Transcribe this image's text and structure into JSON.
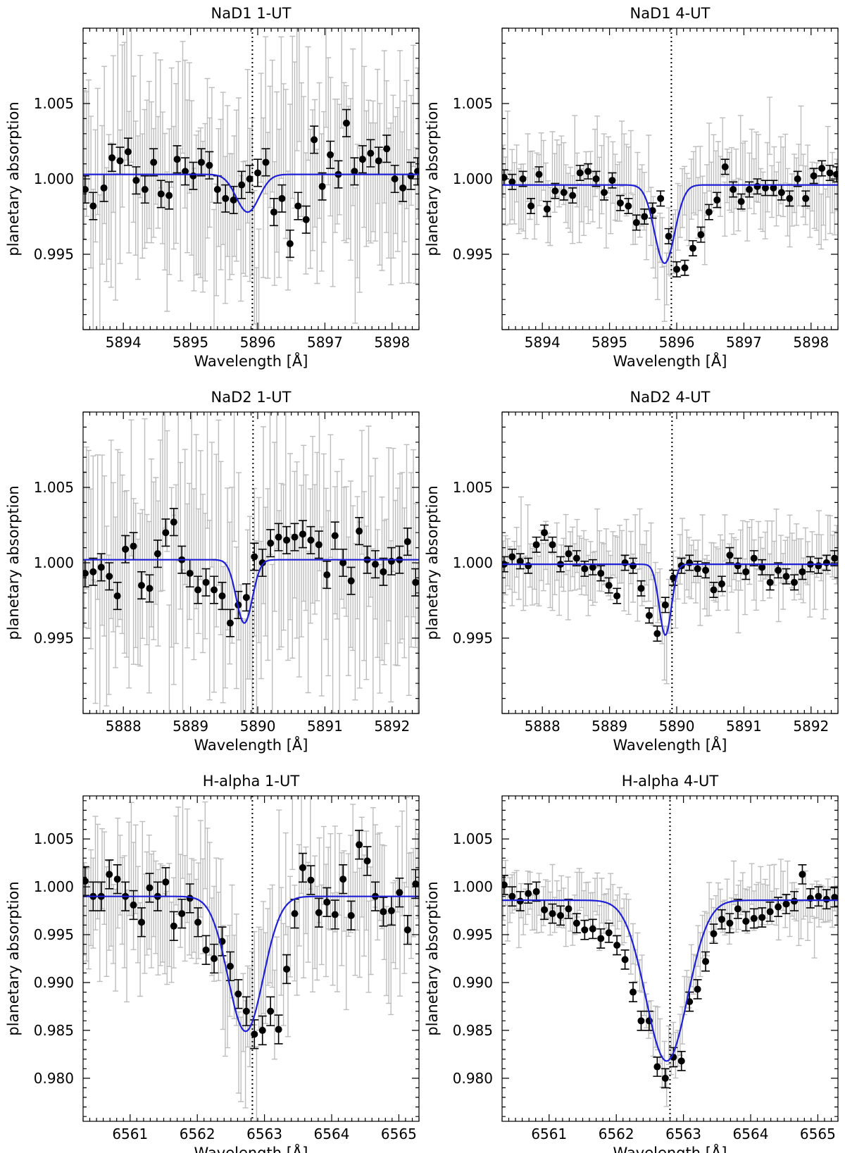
{
  "figure": {
    "panels": [
      {
        "title": "NaD1 1-UT",
        "xlabel": "Wavelength [Å]",
        "ylabel": "planetary absorption"
      },
      {
        "title": "NaD1 4-UT",
        "xlabel": "Wavelength [Å]",
        "ylabel": "planetary absorption"
      },
      {
        "title": "NaD2 1-UT",
        "xlabel": "Wavelength [Å]",
        "ylabel": "planetary absorption"
      },
      {
        "title": "NaD2 4-UT",
        "xlabel": "Wavelength [Å]",
        "ylabel": "planetary absorption"
      },
      {
        "title": "H-alpha 1-UT",
        "xlabel": "Wavelength [Å]",
        "ylabel": "planetary absorption"
      },
      {
        "title": "H-alpha 4-UT",
        "xlabel": "Wavelength [Å]",
        "ylabel": "planetary absorption"
      }
    ]
  },
  "colors": {
    "fit_line": "#1f1fd6",
    "binned_points": "#000000",
    "raw_errorbars": "#bdbdbd",
    "axes": "#000000"
  },
  "chart_data": [
    {
      "type": "scatter",
      "title": "NaD1 1-UT",
      "xlabel": "Wavelength [Å]",
      "ylabel": "planetary absorption",
      "xlim": [
        5893.4,
        5898.4
      ],
      "ylim": [
        0.99,
        1.01
      ],
      "xticks": [
        5894,
        5895,
        5896,
        5897,
        5898
      ],
      "yticks": [
        0.995,
        1.0,
        1.005
      ],
      "ytick_labels": [
        "0.995",
        "1.000",
        "1.005"
      ],
      "reference_line_x": 5895.92,
      "fit": {
        "baseline": 1.0003,
        "depth": 0.0025,
        "center": 5895.85,
        "sigma": 0.17
      },
      "raw_noise": {
        "scatter": 0.0028,
        "errorbar": 0.0045
      },
      "binned": {
        "x": [
          5893.43,
          5893.55,
          5893.71,
          5893.83,
          5893.95,
          5894.07,
          5894.19,
          5894.32,
          5894.45,
          5894.56,
          5894.68,
          5894.8,
          5894.92,
          5895.04,
          5895.16,
          5895.28,
          5895.4,
          5895.52,
          5895.64,
          5895.76,
          5895.88,
          5896.0,
          5896.12,
          5896.24,
          5896.36,
          5896.48,
          5896.6,
          5896.72,
          5896.84,
          5896.96,
          5897.08,
          5897.2,
          5897.32,
          5897.44,
          5897.56,
          5897.68,
          5897.8,
          5897.92,
          5898.04,
          5898.16,
          5898.28,
          5898.38
        ],
        "y": [
          0.9993,
          0.9982,
          0.9994,
          1.0014,
          1.0012,
          1.0018,
          0.9999,
          0.9993,
          1.0011,
          0.999,
          0.9989,
          1.0013,
          1.0005,
          1.0002,
          1.0011,
          1.0009,
          0.9993,
          0.9987,
          0.9986,
          0.9996,
          1.0,
          1.0004,
          1.0011,
          0.9978,
          0.9987,
          0.9957,
          0.9982,
          0.9973,
          1.0026,
          0.9995,
          1.0016,
          1.0003,
          1.0037,
          1.0005,
          1.0013,
          1.0017,
          1.0012,
          1.002,
          1.0,
          0.9994,
          1.0002,
          1.0005
        ],
        "err": 0.0009
      }
    },
    {
      "type": "scatter",
      "title": "NaD1 4-UT",
      "xlabel": "Wavelength [Å]",
      "ylabel": "planetary absorption",
      "xlim": [
        5893.4,
        5898.4
      ],
      "ylim": [
        0.99,
        1.01
      ],
      "xticks": [
        5894,
        5895,
        5896,
        5897,
        5898
      ],
      "yticks": [
        0.995,
        1.0,
        1.005
      ],
      "ytick_labels": [
        "0.995",
        "1.000",
        "1.005"
      ],
      "reference_line_x": 5895.92,
      "fit": {
        "baseline": 0.9996,
        "depth": 0.0052,
        "center": 5895.82,
        "sigma": 0.15
      },
      "raw_noise": {
        "scatter": 0.0012,
        "errorbar": 0.002
      },
      "binned": {
        "x": [
          5893.43,
          5893.55,
          5893.71,
          5893.83,
          5893.95,
          5894.07,
          5894.19,
          5894.32,
          5894.45,
          5894.56,
          5894.68,
          5894.8,
          5894.92,
          5895.04,
          5895.16,
          5895.28,
          5895.4,
          5895.52,
          5895.64,
          5895.76,
          5895.88,
          5896.0,
          5896.12,
          5896.24,
          5896.36,
          5896.48,
          5896.6,
          5896.72,
          5896.84,
          5896.96,
          5897.08,
          5897.2,
          5897.32,
          5897.44,
          5897.56,
          5897.68,
          5897.8,
          5897.92,
          5898.04,
          5898.16,
          5898.28,
          5898.38
        ],
        "y": [
          1.0001,
          0.9998,
          1.0,
          0.9982,
          1.0003,
          0.998,
          0.9992,
          0.9991,
          0.9989,
          1.0004,
          1.0005,
          1.0,
          0.9991,
          0.9999,
          0.9984,
          0.9982,
          0.9971,
          0.9975,
          0.9979,
          0.9987,
          0.9962,
          0.994,
          0.9941,
          0.9954,
          0.9963,
          0.9978,
          0.9986,
          1.0008,
          0.9993,
          0.9985,
          0.9993,
          0.9995,
          0.9994,
          0.9994,
          0.9991,
          0.9987,
          1.0,
          0.9987,
          1.0002,
          1.0007,
          1.0004,
          1.0003
        ],
        "err": 0.0005
      }
    },
    {
      "type": "scatter",
      "title": "NaD2 1-UT",
      "xlabel": "Wavelength [Å]",
      "ylabel": "planetary absorption",
      "xlim": [
        5887.4,
        5892.4
      ],
      "ylim": [
        0.99,
        1.01
      ],
      "xticks": [
        5888,
        5889,
        5890,
        5891,
        5892
      ],
      "yticks": [
        0.995,
        1.0,
        1.005
      ],
      "ytick_labels": [
        "0.995",
        "1.000",
        "1.005"
      ],
      "reference_line_x": 5889.93,
      "fit": {
        "baseline": 1.0002,
        "depth": 0.0042,
        "center": 5889.8,
        "sigma": 0.12
      },
      "raw_noise": {
        "scatter": 0.003,
        "errorbar": 0.005
      },
      "binned": {
        "x": [
          5887.43,
          5887.55,
          5887.67,
          5887.79,
          5887.91,
          5888.03,
          5888.15,
          5888.27,
          5888.39,
          5888.51,
          5888.63,
          5888.75,
          5888.87,
          5888.99,
          5889.11,
          5889.23,
          5889.35,
          5889.47,
          5889.59,
          5889.71,
          5889.83,
          5889.95,
          5890.07,
          5890.19,
          5890.31,
          5890.43,
          5890.55,
          5890.67,
          5890.79,
          5890.91,
          5891.03,
          5891.15,
          5891.27,
          5891.39,
          5891.51,
          5891.63,
          5891.75,
          5891.87,
          5891.99,
          5892.11,
          5892.23,
          5892.35
        ],
        "y": [
          0.9993,
          0.9994,
          0.9997,
          0.9991,
          0.9978,
          1.0009,
          1.0011,
          0.9985,
          0.9983,
          1.0006,
          1.002,
          1.0027,
          1.0002,
          0.9993,
          0.9982,
          0.9987,
          0.9982,
          0.9978,
          0.996,
          0.9972,
          0.9977,
          1.0004,
          1.0,
          1.0013,
          1.0017,
          1.0015,
          1.0017,
          1.0019,
          1.0015,
          1.0012,
          0.9992,
          1.0018,
          1.0,
          0.9988,
          1.0021,
          1.0002,
          0.9999,
          0.9994,
          1.0001,
          1.0002,
          1.0014,
          0.9987
        ],
        "err": 0.0009
      }
    },
    {
      "type": "scatter",
      "title": "NaD2 4-UT",
      "xlabel": "Wavelength [Å]",
      "ylabel": "planetary absorption",
      "xlim": [
        5887.4,
        5892.4
      ],
      "ylim": [
        0.99,
        1.01
      ],
      "xticks": [
        5888,
        5889,
        5890,
        5891,
        5892
      ],
      "yticks": [
        0.995,
        1.0,
        1.005
      ],
      "ytick_labels": [
        "0.995",
        "1.000",
        "1.005"
      ],
      "reference_line_x": 5889.93,
      "fit": {
        "baseline": 0.9999,
        "depth": 0.0047,
        "center": 5889.83,
        "sigma": 0.09
      },
      "raw_noise": {
        "scatter": 0.001,
        "errorbar": 0.0017
      },
      "binned": {
        "x": [
          5887.43,
          5887.55,
          5887.67,
          5887.79,
          5887.91,
          5888.03,
          5888.15,
          5888.27,
          5888.39,
          5888.51,
          5888.63,
          5888.75,
          5888.87,
          5888.99,
          5889.11,
          5889.23,
          5889.35,
          5889.47,
          5889.59,
          5889.71,
          5889.83,
          5889.95,
          5890.07,
          5890.19,
          5890.31,
          5890.43,
          5890.55,
          5890.67,
          5890.79,
          5890.91,
          5891.03,
          5891.15,
          5891.27,
          5891.39,
          5891.51,
          5891.63,
          5891.75,
          5891.87,
          5891.99,
          5892.11,
          5892.23,
          5892.35
        ],
        "y": [
          0.9999,
          1.0004,
          1.0001,
          0.9998,
          1.0012,
          1.002,
          1.0012,
          0.9999,
          1.0006,
          1.0003,
          0.9996,
          0.9997,
          0.9993,
          0.9985,
          0.9978,
          1.0,
          0.9998,
          0.9983,
          0.9965,
          0.9953,
          0.9972,
          0.999,
          0.9998,
          1.0,
          0.9996,
          0.9995,
          0.9982,
          0.9986,
          1.0005,
          0.9998,
          0.9994,
          1.0003,
          0.9997,
          0.9987,
          0.9995,
          0.9991,
          0.9987,
          0.9994,
          0.9999,
          0.9998,
          1.0,
          1.0003
        ],
        "err": 0.0005
      }
    },
    {
      "type": "scatter",
      "title": "H-alpha 1-UT",
      "xlabel": "Wavelength [Å]",
      "ylabel": "planetary absorption",
      "xlim": [
        6560.3,
        6565.3
      ],
      "ylim": [
        0.9755,
        1.0095
      ],
      "xticks": [
        6561,
        6562,
        6563,
        6564,
        6565
      ],
      "yticks": [
        0.98,
        0.985,
        0.99,
        0.995,
        1.0,
        1.005
      ],
      "ytick_labels": [
        "0.980",
        "0.985",
        "0.990",
        "0.995",
        "1.000",
        "1.005"
      ],
      "reference_line_x": 6562.82,
      "fit": {
        "baseline": 0.999,
        "depth": 0.0141,
        "center": 6562.72,
        "sigma": 0.26
      },
      "raw_noise": {
        "scatter": 0.003,
        "errorbar": 0.005
      },
      "binned": {
        "x": [
          6560.33,
          6560.45,
          6560.57,
          6560.69,
          6560.81,
          6560.93,
          6561.05,
          6561.17,
          6561.29,
          6561.41,
          6561.53,
          6561.65,
          6561.77,
          6561.89,
          6562.01,
          6562.13,
          6562.25,
          6562.37,
          6562.49,
          6562.61,
          6562.73,
          6562.85,
          6562.97,
          6563.09,
          6563.21,
          6563.33,
          6563.45,
          6563.57,
          6563.69,
          6563.81,
          6563.93,
          6564.05,
          6564.17,
          6564.29,
          6564.41,
          6564.53,
          6564.65,
          6564.77,
          6564.89,
          6565.01,
          6565.13,
          6565.25
        ],
        "y": [
          1.0006,
          0.999,
          0.999,
          1.0013,
          1.0008,
          0.999,
          0.9981,
          0.9963,
          0.9999,
          0.999,
          1.0005,
          0.9959,
          0.9972,
          0.9988,
          0.9963,
          0.9934,
          0.9925,
          0.9943,
          0.9917,
          0.9888,
          0.987,
          0.9846,
          0.985,
          0.987,
          0.9851,
          0.9914,
          0.9972,
          1.002,
          1.0007,
          0.9973,
          0.9984,
          0.9971,
          1.0008,
          0.997,
          1.0044,
          1.0027,
          0.999,
          0.9974,
          0.9975,
          0.9994,
          0.9955,
          1.0003
        ],
        "err": 0.0015
      }
    },
    {
      "type": "scatter",
      "title": "H-alpha 4-UT",
      "xlabel": "Wavelength [Å]",
      "ylabel": "planetary absorption",
      "xlim": [
        6560.3,
        6565.3
      ],
      "ylim": [
        0.9755,
        1.0095
      ],
      "xticks": [
        6561,
        6562,
        6563,
        6564,
        6565
      ],
      "yticks": [
        0.98,
        0.985,
        0.99,
        0.995,
        1.0,
        1.005
      ],
      "ytick_labels": [
        "0.980",
        "0.985",
        "0.990",
        "0.995",
        "1.000",
        "1.005"
      ],
      "reference_line_x": 6562.8,
      "fit": {
        "baseline": 0.9986,
        "depth": 0.0168,
        "center": 6562.75,
        "sigma": 0.31
      },
      "raw_noise": {
        "scatter": 0.0012,
        "errorbar": 0.002
      },
      "binned": {
        "x": [
          6560.33,
          6560.45,
          6560.57,
          6560.69,
          6560.81,
          6560.93,
          6561.05,
          6561.17,
          6561.29,
          6561.41,
          6561.53,
          6561.65,
          6561.77,
          6561.89,
          6562.01,
          6562.13,
          6562.25,
          6562.37,
          6562.49,
          6562.61,
          6562.73,
          6562.85,
          6562.97,
          6563.09,
          6563.21,
          6563.33,
          6563.45,
          6563.57,
          6563.69,
          6563.81,
          6563.93,
          6564.05,
          6564.17,
          6564.29,
          6564.41,
          6564.53,
          6564.65,
          6564.77,
          6564.89,
          6565.01,
          6565.13,
          6565.25
        ],
        "y": [
          1.0002,
          0.999,
          0.9985,
          0.9993,
          0.9995,
          0.9976,
          0.9972,
          0.997,
          0.9977,
          0.9962,
          0.9955,
          0.9956,
          0.9946,
          0.9952,
          0.9939,
          0.9924,
          0.989,
          0.986,
          0.986,
          0.9812,
          0.98,
          0.9822,
          0.9818,
          0.988,
          0.9893,
          0.9922,
          0.9951,
          0.9966,
          0.9962,
          0.9977,
          0.9964,
          0.9967,
          0.9968,
          0.9974,
          0.9979,
          0.9982,
          0.9985,
          1.0013,
          0.9988,
          0.999,
          0.9987,
          0.9989
        ],
        "err": 0.001
      }
    }
  ]
}
